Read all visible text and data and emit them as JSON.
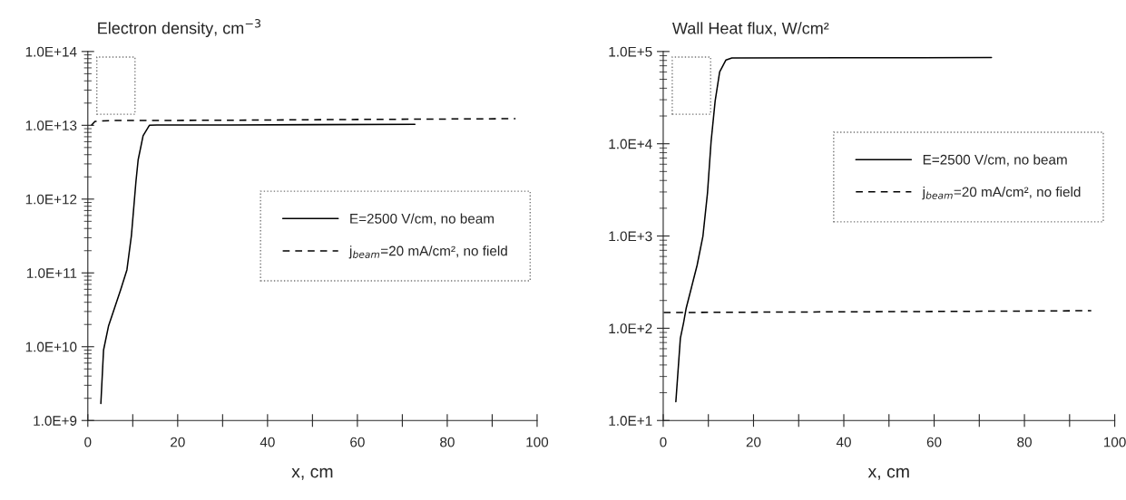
{
  "chart_data": [
    {
      "type": "line",
      "title": "Electron density, cm$^{−3}$",
      "xlabel": "x, cm",
      "xlim": [
        0,
        100
      ],
      "xticks": [
        0,
        {
          "value": 10,
          "label": null
        },
        20,
        {
          "value": 30,
          "label": null
        },
        40,
        {
          "value": 50,
          "label": null
        },
        60,
        {
          "value": 70,
          "label": null
        },
        80,
        {
          "value": 90,
          "label": null
        },
        100
      ],
      "ylim": [
        1000000000.0,
        100000000000000.0
      ],
      "yticks": [
        {
          "value": 1000000000.0,
          "label": "1.0E+9"
        },
        {
          "value": 10000000000.0,
          "label": "1.0E+10"
        },
        {
          "value": 100000000000.0,
          "label": "1.0E+11"
        },
        {
          "value": 1000000000000.0,
          "label": "1.0E+12"
        },
        {
          "value": 10000000000000.0,
          "label": "1.0E+13"
        },
        {
          "value": 100000000000000.0,
          "label": "1.0E+14"
        }
      ],
      "log": "y",
      "legend": "center right",
      "series": [
        {
          "name": "E=2500 V/cm, no beam",
          "color": "#000000",
          "line_style": "solid",
          "x": [
            2.9,
            3.5,
            4.6,
            7.3,
            8.7,
            9.7,
            10.7,
            11.2,
            12.3,
            13.7,
            15.4,
            30,
            50,
            72.8
          ],
          "values": [
            1700000000.0,
            9000000000.0,
            19000000000.0,
            59000000000.0,
            110000000000.0,
            320000000000.0,
            1700000000000.0,
            3400000000000.0,
            7200000000000.0,
            10000000000000.0,
            10100000000000.0,
            10100000000000.0,
            10200000000000.0,
            10300000000000.0
          ]
        },
        {
          "name": "j$_{beam}$=20 mA/cm², no field",
          "color": "#000000",
          "line_style": "dashed",
          "x": [
            0.8,
            1.6,
            5,
            30,
            60,
            95.2
          ],
          "values": [
            10000000000000.0,
            11300000000000.0,
            11600000000000.0,
            11700000000000.0,
            12000000000000.0,
            12300000000000.0
          ]
        }
      ]
    },
    {
      "type": "line",
      "title": "Wall Heat flux, W/cm²",
      "xlabel": "x, cm",
      "xlim": [
        0,
        100
      ],
      "xticks": [
        0,
        {
          "value": 10,
          "label": null
        },
        20,
        {
          "value": 30,
          "label": null
        },
        40,
        {
          "value": 50,
          "label": null
        },
        60,
        {
          "value": 70,
          "label": null
        },
        80,
        {
          "value": 90,
          "label": null
        },
        100
      ],
      "ylim": [
        10,
        100000.0
      ],
      "yticks": [
        {
          "value": 10,
          "label": "1.0E+1"
        },
        {
          "value": 100,
          "label": "1.0E+2"
        },
        {
          "value": 1000,
          "label": "1.0E+3"
        },
        {
          "value": 10000,
          "label": "1.0E+4"
        },
        {
          "value": 100000,
          "label": "1.0E+5"
        }
      ],
      "log": "y",
      "legend": "upper right",
      "series": [
        {
          "name": "E=2500 V/cm, no beam",
          "color": "#000000",
          "line_style": "solid",
          "x": [
            2.8,
            3.8,
            4.5,
            5.1,
            7.5,
            8.8,
            9.8,
            10.6,
            11.5,
            12.5,
            13.9,
            15.2,
            40,
            72.7
          ],
          "values": [
            16,
            78,
            114,
            166,
            480,
            1000,
            2900,
            10500,
            29000,
            60000,
            81000,
            85000,
            85500,
            86000
          ]
        },
        {
          "name": "j$_{beam}$=20 mA/cm², no field",
          "color": "#000000",
          "line_style": "dashed",
          "x": [
            0.1,
            30,
            60,
            94.8
          ],
          "values": [
            148,
            150,
            152,
            155
          ]
        }
      ]
    }
  ]
}
